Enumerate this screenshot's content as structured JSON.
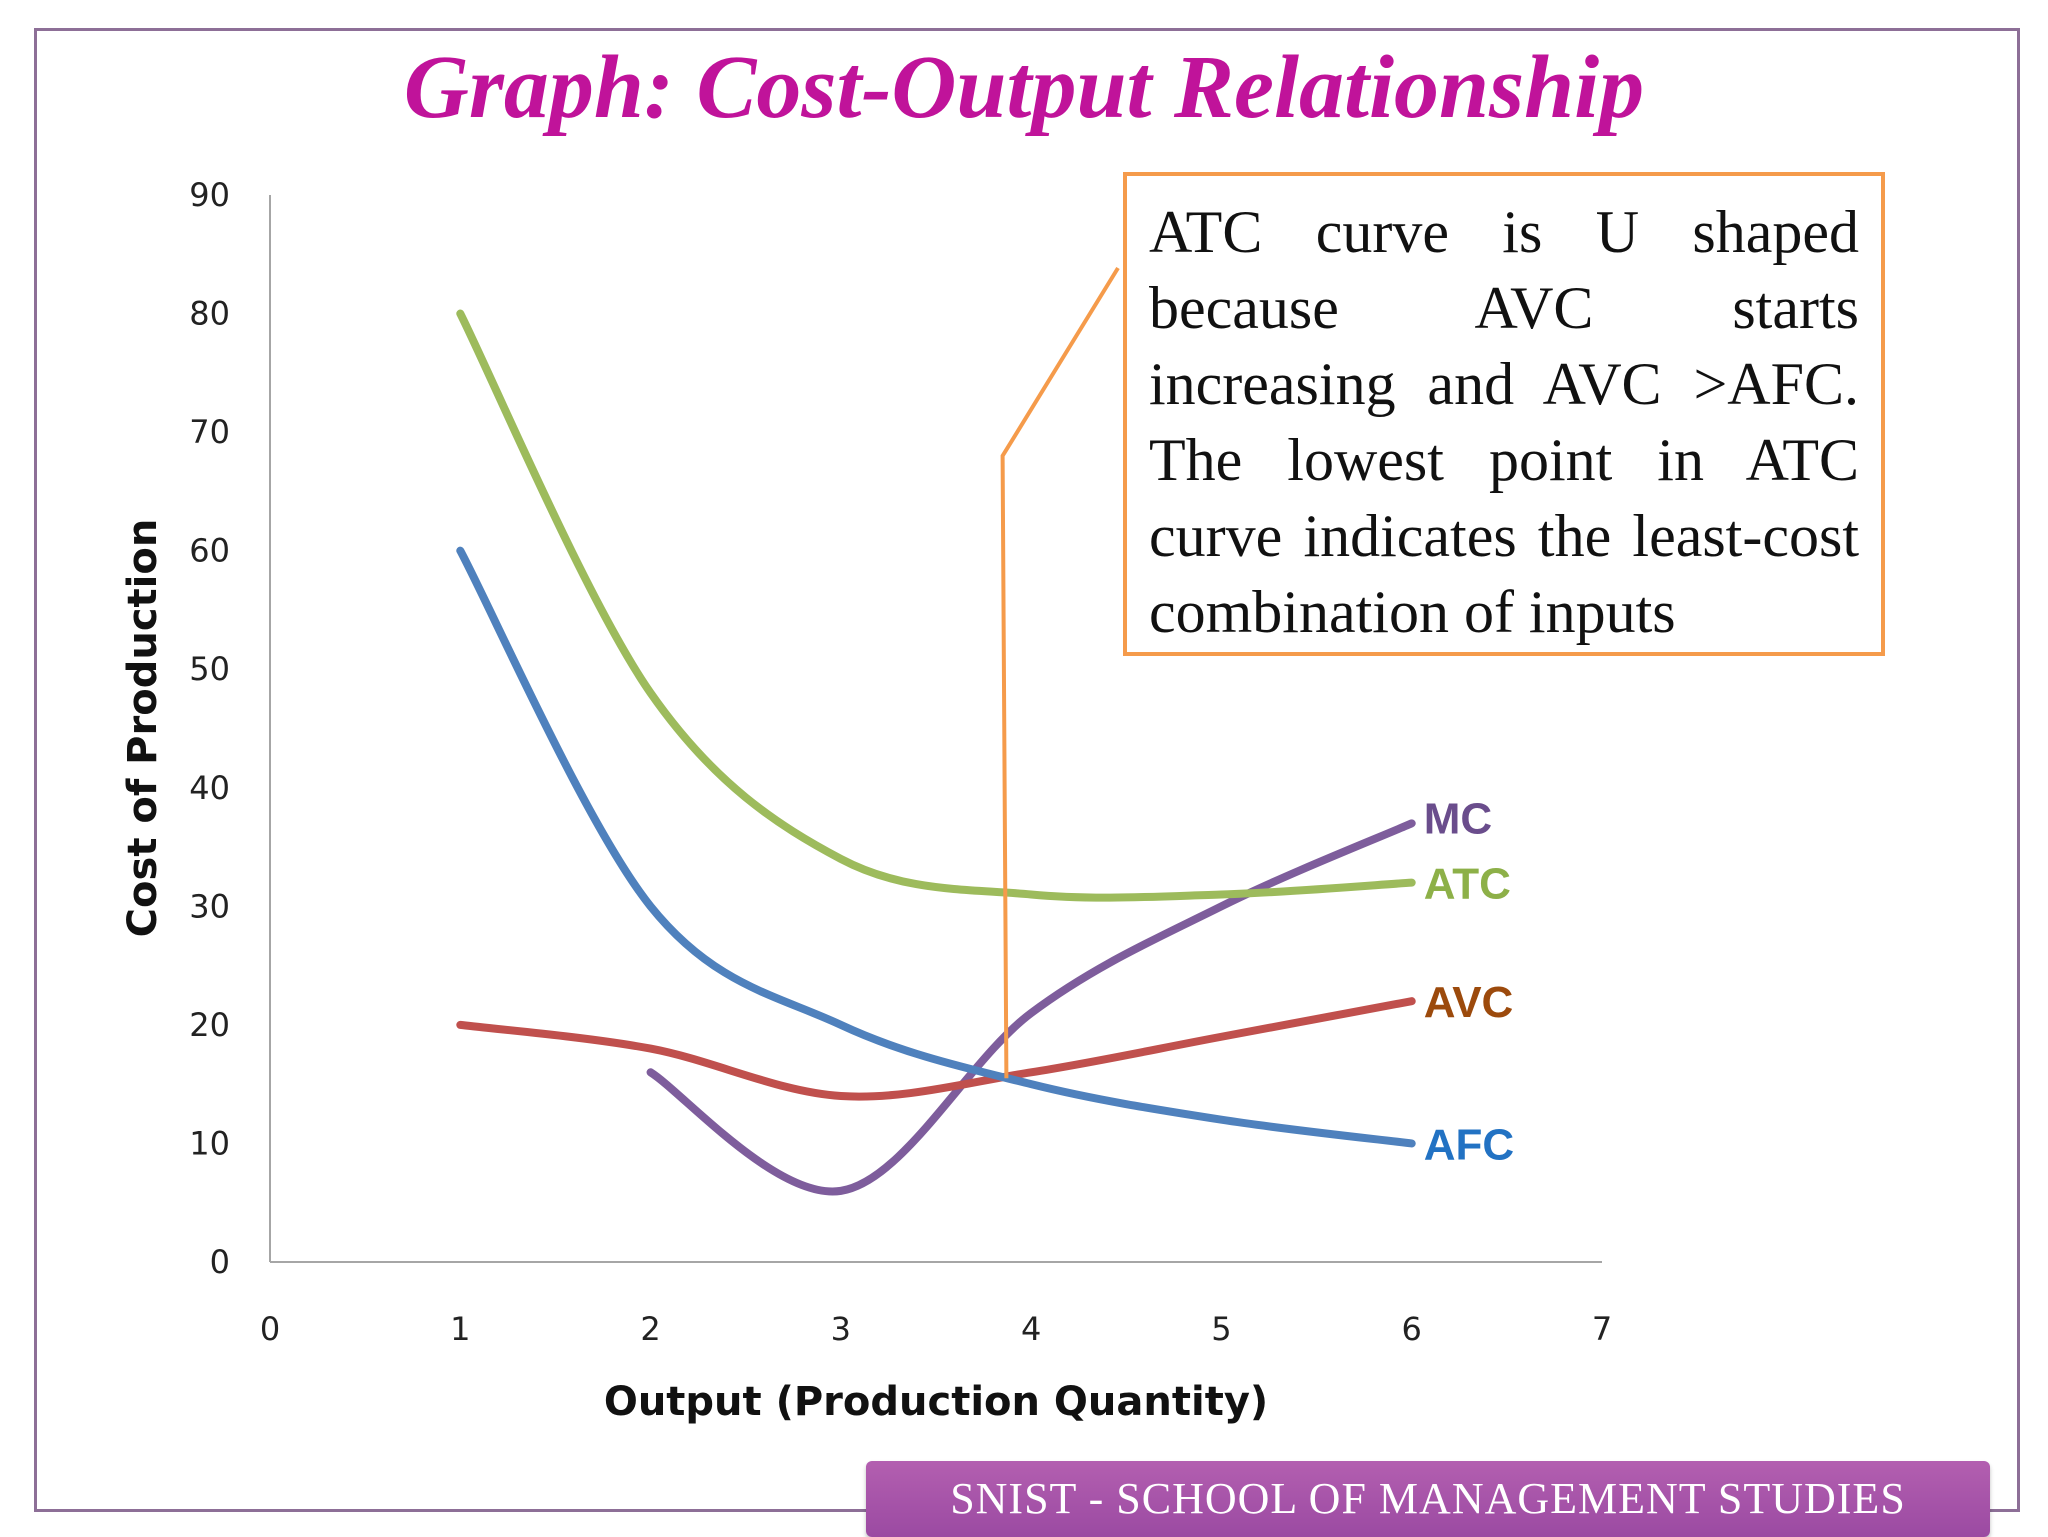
{
  "title": "Graph: Cost-Output Relationship",
  "note": "ATC curve is U shaped because AVC starts increasing and AVC >AFC. The lowest point in ATC curve indicates the least-cost combination of inputs",
  "footer": "SNIST - SCHOOL OF MANAGEMENT STUDIES",
  "colors": {
    "title": "#c0139a",
    "callout_border": "#f59b4b",
    "footer_bg": "#a652a8",
    "frame": "#8d6f97"
  },
  "chart_data": {
    "type": "line",
    "title": "",
    "xlabel": "Output (Production Quantity)",
    "ylabel": "Cost of Production",
    "xlim": [
      0,
      7
    ],
    "ylim": [
      0,
      90
    ],
    "xticks": [
      "0",
      "1",
      "2",
      "3",
      "4",
      "5",
      "6",
      "7"
    ],
    "yticks": [
      "0",
      "10",
      "20",
      "30",
      "40",
      "50",
      "60",
      "70",
      "80",
      "90"
    ],
    "grid": false,
    "series": [
      {
        "name": "MC",
        "color": "#7e5d9c",
        "label_color": "#6a4d8c",
        "x": [
          2,
          3,
          4,
          5,
          6
        ],
        "y": [
          16,
          6,
          21,
          30,
          37
        ]
      },
      {
        "name": "ATC",
        "color": "#9dbb5c",
        "label_color": "#8db048",
        "x": [
          1,
          2,
          3,
          4,
          5,
          6
        ],
        "y": [
          80,
          48,
          34,
          31,
          31,
          32
        ]
      },
      {
        "name": "AVC",
        "color": "#c0504d",
        "label_color": "#9c4a0c",
        "x": [
          1,
          2,
          3,
          4,
          5,
          6
        ],
        "y": [
          20,
          18,
          14,
          16,
          19,
          22
        ]
      },
      {
        "name": "AFC",
        "color": "#4f81bd",
        "label_color": "#2272c3",
        "x": [
          1,
          2,
          3,
          4,
          5,
          6
        ],
        "y": [
          60,
          30,
          20,
          15,
          12,
          10
        ]
      }
    ],
    "annotation": {
      "text_ref": "note",
      "color": "#f59b4b",
      "points": [
        [
          3.87,
          15.5
        ],
        [
          3.85,
          68
        ]
      ]
    }
  }
}
